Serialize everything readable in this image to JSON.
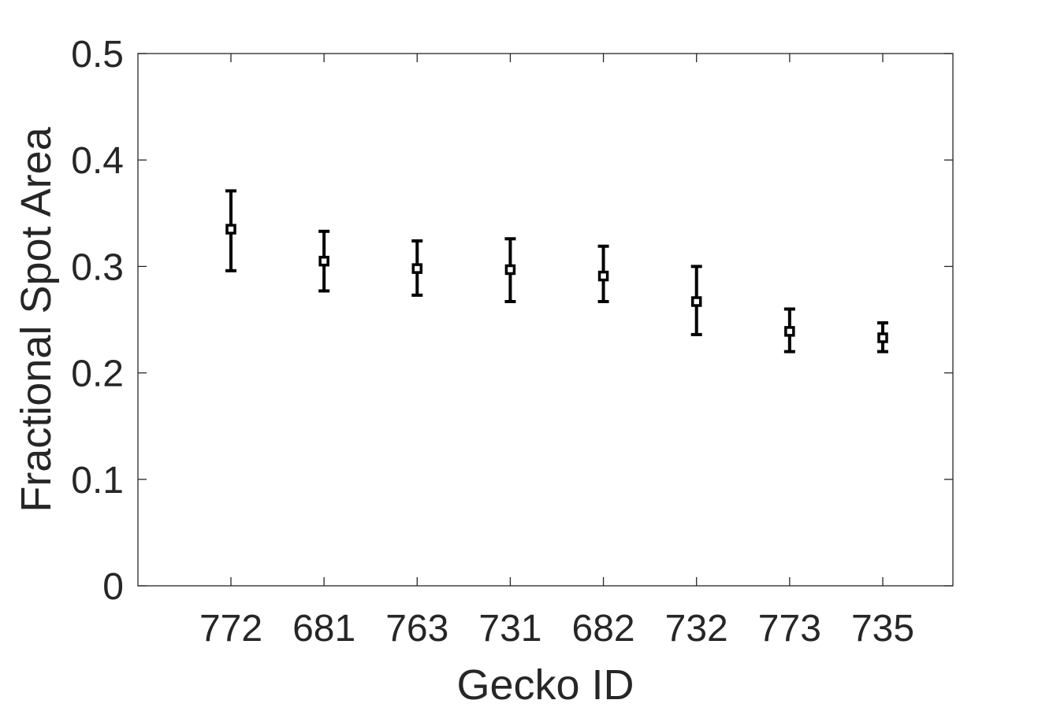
{
  "chart_data": {
    "type": "scatter",
    "xlabel": "Gecko ID",
    "ylabel": "Fractional Spot Area",
    "ylim": [
      0,
      0.5
    ],
    "yticks": [
      "0",
      "0.1",
      "0.2",
      "0.3",
      "0.4",
      "0.5"
    ],
    "categories": [
      "772",
      "681",
      "763",
      "731",
      "682",
      "732",
      "773",
      "735"
    ],
    "values": [
      0.335,
      0.305,
      0.298,
      0.297,
      0.291,
      0.267,
      0.239,
      0.233
    ],
    "error_low": [
      0.296,
      0.277,
      0.273,
      0.267,
      0.267,
      0.236,
      0.22,
      0.22
    ],
    "error_high": [
      0.371,
      0.333,
      0.324,
      0.326,
      0.319,
      0.3,
      0.26,
      0.247
    ],
    "grid": false,
    "box": true,
    "colors": {
      "axis": "#262626",
      "marker": "#000000"
    }
  }
}
